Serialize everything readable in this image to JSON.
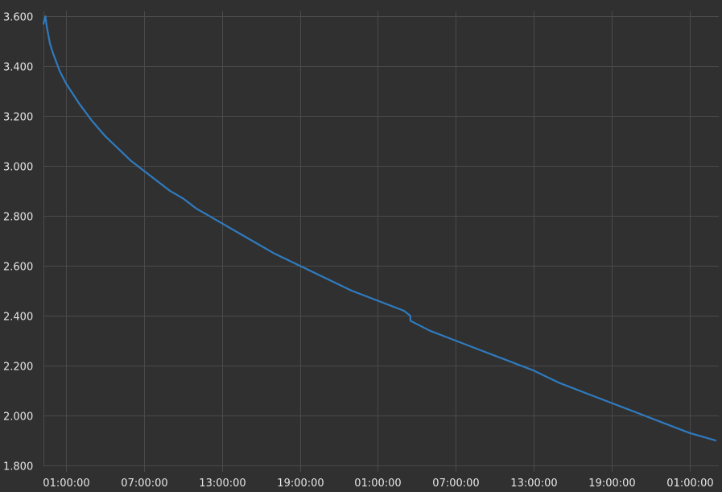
{
  "chart_data": {
    "type": "line",
    "title": "",
    "xlabel": "",
    "ylabel": "",
    "grid": true,
    "legend": "none",
    "x_tick_labels": [
      "01:00:00",
      "07:00:00",
      "13:00:00",
      "19:00:00",
      "01:00:00",
      "07:00:00",
      "13:00:00",
      "19:00:00",
      "01:00:00"
    ],
    "x_tick_hours": [
      0,
      6,
      12,
      18,
      24,
      30,
      36,
      42,
      48
    ],
    "xlim_hours": [
      -1.75,
      50.25
    ],
    "y_tick_labels": [
      "1.800",
      "2.000",
      "2.200",
      "2.400",
      "2.600",
      "2.800",
      "3.000",
      "3.200",
      "3.400",
      "3.600"
    ],
    "y_tick_values": [
      1.8,
      2.0,
      2.2,
      2.4,
      2.6,
      2.8,
      3.0,
      3.2,
      3.4,
      3.6
    ],
    "ylim": [
      1.8,
      3.62
    ],
    "series": [
      {
        "color": "#2f7bbf",
        "x_hours": [
          -1.75,
          -1.6,
          -1.5,
          -1.25,
          -1.0,
          -0.5,
          0.0,
          1.0,
          2.0,
          3.0,
          4.0,
          5.0,
          6.0,
          7.0,
          8.0,
          9.0,
          10.0,
          12.0,
          14.0,
          16.0,
          18.0,
          20.0,
          22.0,
          24.0,
          26.0,
          26.5,
          26.5,
          28.0,
          30.0,
          32.0,
          34.0,
          36.0,
          38.0,
          40.0,
          42.0,
          44.0,
          46.0,
          48.0,
          50.0
        ],
        "values": [
          3.57,
          3.6,
          3.56,
          3.49,
          3.45,
          3.38,
          3.33,
          3.25,
          3.18,
          3.12,
          3.07,
          3.02,
          2.98,
          2.94,
          2.9,
          2.87,
          2.83,
          2.77,
          2.71,
          2.65,
          2.6,
          2.55,
          2.5,
          2.46,
          2.42,
          2.4,
          2.38,
          2.34,
          2.3,
          2.26,
          2.22,
          2.18,
          2.13,
          2.09,
          2.05,
          2.01,
          1.97,
          1.93,
          1.9
        ]
      }
    ]
  }
}
